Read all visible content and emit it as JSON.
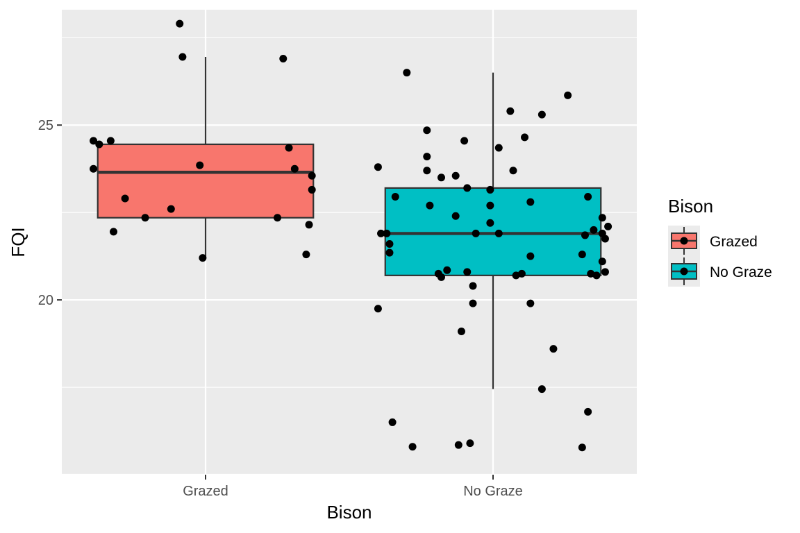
{
  "chart_data": {
    "type": "boxplot",
    "title": "",
    "xlabel": "Bison",
    "ylabel": "FQI",
    "categories": [
      "Grazed",
      "No Graze"
    ],
    "ylim": [
      15.0,
      28.3
    ],
    "yticks": [
      20,
      25
    ],
    "ytick_labels": [
      "20",
      "25"
    ],
    "grid": true,
    "legend": {
      "title": "Bison",
      "position": "right",
      "entries": [
        {
          "label": "Grazed",
          "color": "#F8766D"
        },
        {
          "label": "No Graze",
          "color": "#00BFC4"
        }
      ]
    },
    "boxes": [
      {
        "category": "Grazed",
        "fill": "#F8766D",
        "whisker_low": 21.2,
        "q1": 22.35,
        "median": 23.65,
        "q3": 24.45,
        "whisker_high": 26.95
      },
      {
        "category": "No Graze",
        "fill": "#00BFC4",
        "whisker_low": 17.45,
        "q1": 20.7,
        "median": 21.9,
        "q3": 23.2,
        "whisker_high": 26.5
      }
    ],
    "points": [
      {
        "category": "Grazed",
        "jitter": -0.09,
        "y": 27.9
      },
      {
        "category": "Grazed",
        "jitter": -0.08,
        "y": 26.95
      },
      {
        "category": "Grazed",
        "jitter": 0.27,
        "y": 26.9
      },
      {
        "category": "Grazed",
        "jitter": -0.39,
        "y": 24.55
      },
      {
        "category": "Grazed",
        "jitter": -0.37,
        "y": 24.45
      },
      {
        "category": "Grazed",
        "jitter": -0.33,
        "y": 24.55
      },
      {
        "category": "Grazed",
        "jitter": 0.29,
        "y": 24.35
      },
      {
        "category": "Grazed",
        "jitter": -0.39,
        "y": 23.75
      },
      {
        "category": "Grazed",
        "jitter": -0.02,
        "y": 23.85
      },
      {
        "category": "Grazed",
        "jitter": 0.31,
        "y": 23.75
      },
      {
        "category": "Grazed",
        "jitter": 0.37,
        "y": 23.55
      },
      {
        "category": "Grazed",
        "jitter": 0.37,
        "y": 23.15
      },
      {
        "category": "Grazed",
        "jitter": -0.28,
        "y": 22.9
      },
      {
        "category": "Grazed",
        "jitter": -0.12,
        "y": 22.6
      },
      {
        "category": "Grazed",
        "jitter": -0.21,
        "y": 22.35
      },
      {
        "category": "Grazed",
        "jitter": 0.25,
        "y": 22.35
      },
      {
        "category": "Grazed",
        "jitter": 0.36,
        "y": 22.15
      },
      {
        "category": "Grazed",
        "jitter": -0.32,
        "y": 21.95
      },
      {
        "category": "Grazed",
        "jitter": 0.35,
        "y": 21.3
      },
      {
        "category": "Grazed",
        "jitter": -0.01,
        "y": 21.2
      },
      {
        "category": "No Graze",
        "jitter": -0.3,
        "y": 26.5
      },
      {
        "category": "No Graze",
        "jitter": 0.26,
        "y": 25.85
      },
      {
        "category": "No Graze",
        "jitter": 0.06,
        "y": 25.4
      },
      {
        "category": "No Graze",
        "jitter": 0.17,
        "y": 25.3
      },
      {
        "category": "No Graze",
        "jitter": -0.23,
        "y": 24.85
      },
      {
        "category": "No Graze",
        "jitter": 0.11,
        "y": 24.65
      },
      {
        "category": "No Graze",
        "jitter": -0.1,
        "y": 24.55
      },
      {
        "category": "No Graze",
        "jitter": 0.02,
        "y": 24.35
      },
      {
        "category": "No Graze",
        "jitter": -0.23,
        "y": 24.1
      },
      {
        "category": "No Graze",
        "jitter": -0.4,
        "y": 23.8
      },
      {
        "category": "No Graze",
        "jitter": -0.23,
        "y": 23.7
      },
      {
        "category": "No Graze",
        "jitter": 0.07,
        "y": 23.7
      },
      {
        "category": "No Graze",
        "jitter": -0.18,
        "y": 23.5
      },
      {
        "category": "No Graze",
        "jitter": -0.13,
        "y": 23.55
      },
      {
        "category": "No Graze",
        "jitter": -0.09,
        "y": 23.2
      },
      {
        "category": "No Graze",
        "jitter": -0.01,
        "y": 23.15
      },
      {
        "category": "No Graze",
        "jitter": -0.34,
        "y": 22.95
      },
      {
        "category": "No Graze",
        "jitter": 0.33,
        "y": 22.95
      },
      {
        "category": "No Graze",
        "jitter": -0.22,
        "y": 22.7
      },
      {
        "category": "No Graze",
        "jitter": -0.01,
        "y": 22.7
      },
      {
        "category": "No Graze",
        "jitter": 0.13,
        "y": 22.8
      },
      {
        "category": "No Graze",
        "jitter": -0.13,
        "y": 22.4
      },
      {
        "category": "No Graze",
        "jitter": 0.38,
        "y": 22.35
      },
      {
        "category": "No Graze",
        "jitter": -0.01,
        "y": 22.2
      },
      {
        "category": "No Graze",
        "jitter": 0.4,
        "y": 22.1
      },
      {
        "category": "No Graze",
        "jitter": 0.35,
        "y": 22.0
      },
      {
        "category": "No Graze",
        "jitter": -0.39,
        "y": 21.9
      },
      {
        "category": "No Graze",
        "jitter": -0.37,
        "y": 21.9
      },
      {
        "category": "No Graze",
        "jitter": -0.06,
        "y": 21.9
      },
      {
        "category": "No Graze",
        "jitter": 0.02,
        "y": 21.9
      },
      {
        "category": "No Graze",
        "jitter": 0.32,
        "y": 21.85
      },
      {
        "category": "No Graze",
        "jitter": 0.38,
        "y": 21.9
      },
      {
        "category": "No Graze",
        "jitter": 0.39,
        "y": 21.75
      },
      {
        "category": "No Graze",
        "jitter": -0.36,
        "y": 21.6
      },
      {
        "category": "No Graze",
        "jitter": -0.36,
        "y": 21.35
      },
      {
        "category": "No Graze",
        "jitter": 0.13,
        "y": 21.25
      },
      {
        "category": "No Graze",
        "jitter": 0.31,
        "y": 21.3
      },
      {
        "category": "No Graze",
        "jitter": 0.38,
        "y": 21.1
      },
      {
        "category": "No Graze",
        "jitter": -0.16,
        "y": 20.85
      },
      {
        "category": "No Graze",
        "jitter": -0.09,
        "y": 20.8
      },
      {
        "category": "No Graze",
        "jitter": 0.39,
        "y": 20.8
      },
      {
        "category": "No Graze",
        "jitter": -0.19,
        "y": 20.75
      },
      {
        "category": "No Graze",
        "jitter": 0.1,
        "y": 20.75
      },
      {
        "category": "No Graze",
        "jitter": 0.34,
        "y": 20.75
      },
      {
        "category": "No Graze",
        "jitter": 0.36,
        "y": 20.7
      },
      {
        "category": "No Graze",
        "jitter": -0.18,
        "y": 20.65
      },
      {
        "category": "No Graze",
        "jitter": 0.08,
        "y": 20.7
      },
      {
        "category": "No Graze",
        "jitter": -0.07,
        "y": 20.4
      },
      {
        "category": "No Graze",
        "jitter": -0.07,
        "y": 19.9
      },
      {
        "category": "No Graze",
        "jitter": 0.13,
        "y": 19.9
      },
      {
        "category": "No Graze",
        "jitter": -0.4,
        "y": 19.75
      },
      {
        "category": "No Graze",
        "jitter": -0.11,
        "y": 19.1
      },
      {
        "category": "No Graze",
        "jitter": 0.21,
        "y": 18.6
      },
      {
        "category": "No Graze",
        "jitter": 0.17,
        "y": 17.45
      },
      {
        "category": "No Graze",
        "jitter": 0.33,
        "y": 16.8
      },
      {
        "category": "No Graze",
        "jitter": -0.35,
        "y": 16.5
      },
      {
        "category": "No Graze",
        "jitter": -0.08,
        "y": 15.9
      },
      {
        "category": "No Graze",
        "jitter": -0.12,
        "y": 15.85
      },
      {
        "category": "No Graze",
        "jitter": -0.28,
        "y": 15.8
      },
      {
        "category": "No Graze",
        "jitter": 0.31,
        "y": 15.78
      }
    ]
  }
}
